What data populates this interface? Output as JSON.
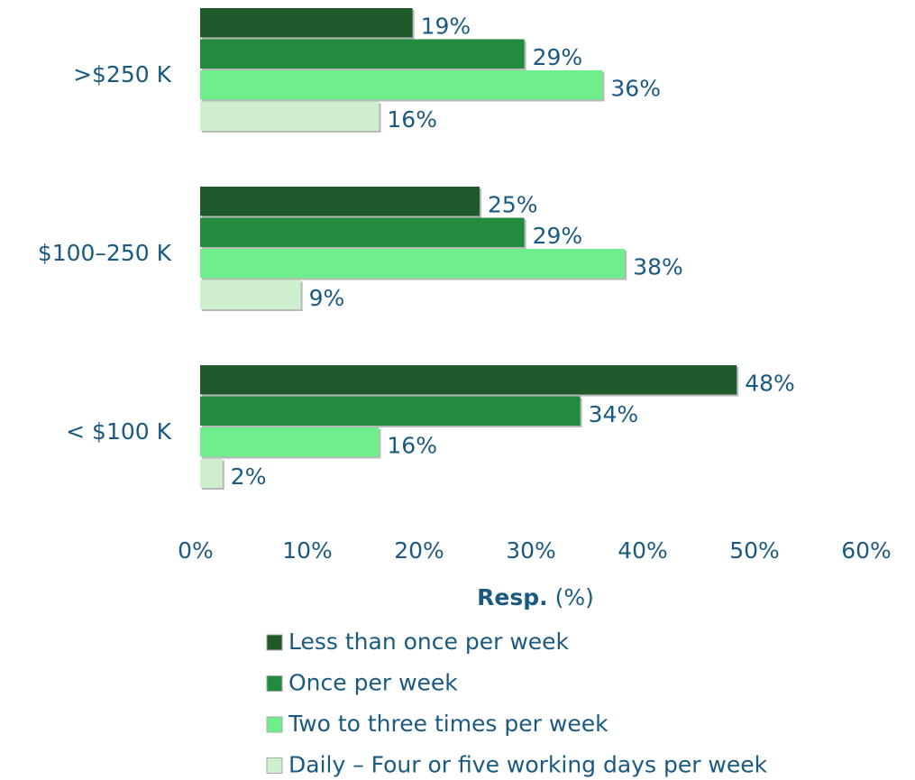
{
  "chart_data": {
    "type": "hbar",
    "categories": [
      ">$250 K",
      "$100–250 K",
      "< $100 K"
    ],
    "series": [
      {
        "name": "Less than once per week",
        "color": "#1e5a2a",
        "values": [
          19,
          25,
          48
        ],
        "value_labels": [
          "19%",
          "25%",
          "48%"
        ]
      },
      {
        "name": "Once per week",
        "color": "#238b3d",
        "values": [
          29,
          29,
          34
        ],
        "value_labels": [
          "29%",
          "29%",
          "34%"
        ]
      },
      {
        "name": "Two to three times per week",
        "color": "#6fee8d",
        "values": [
          36,
          38,
          16
        ],
        "value_labels": [
          "36%",
          "38%",
          "16%"
        ]
      },
      {
        "name": "Daily – Four or five working days per week",
        "color": "#cdefcd",
        "values": [
          16,
          9,
          2
        ],
        "value_labels": [
          "16%",
          "9%",
          "2%"
        ]
      }
    ],
    "xlim": [
      0,
      60
    ],
    "xticks": [
      {
        "value": 0,
        "label": "0%"
      },
      {
        "value": 10,
        "label": "10%"
      },
      {
        "value": 20,
        "label": "20%"
      },
      {
        "value": 30,
        "label": "30%"
      },
      {
        "value": 40,
        "label": "40%"
      },
      {
        "value": 50,
        "label": "50%"
      },
      {
        "value": 60,
        "label": "60%"
      }
    ],
    "xlabel": "Resp.",
    "xlabel_unit": "(%)",
    "grid": false,
    "legend": "bottom"
  }
}
